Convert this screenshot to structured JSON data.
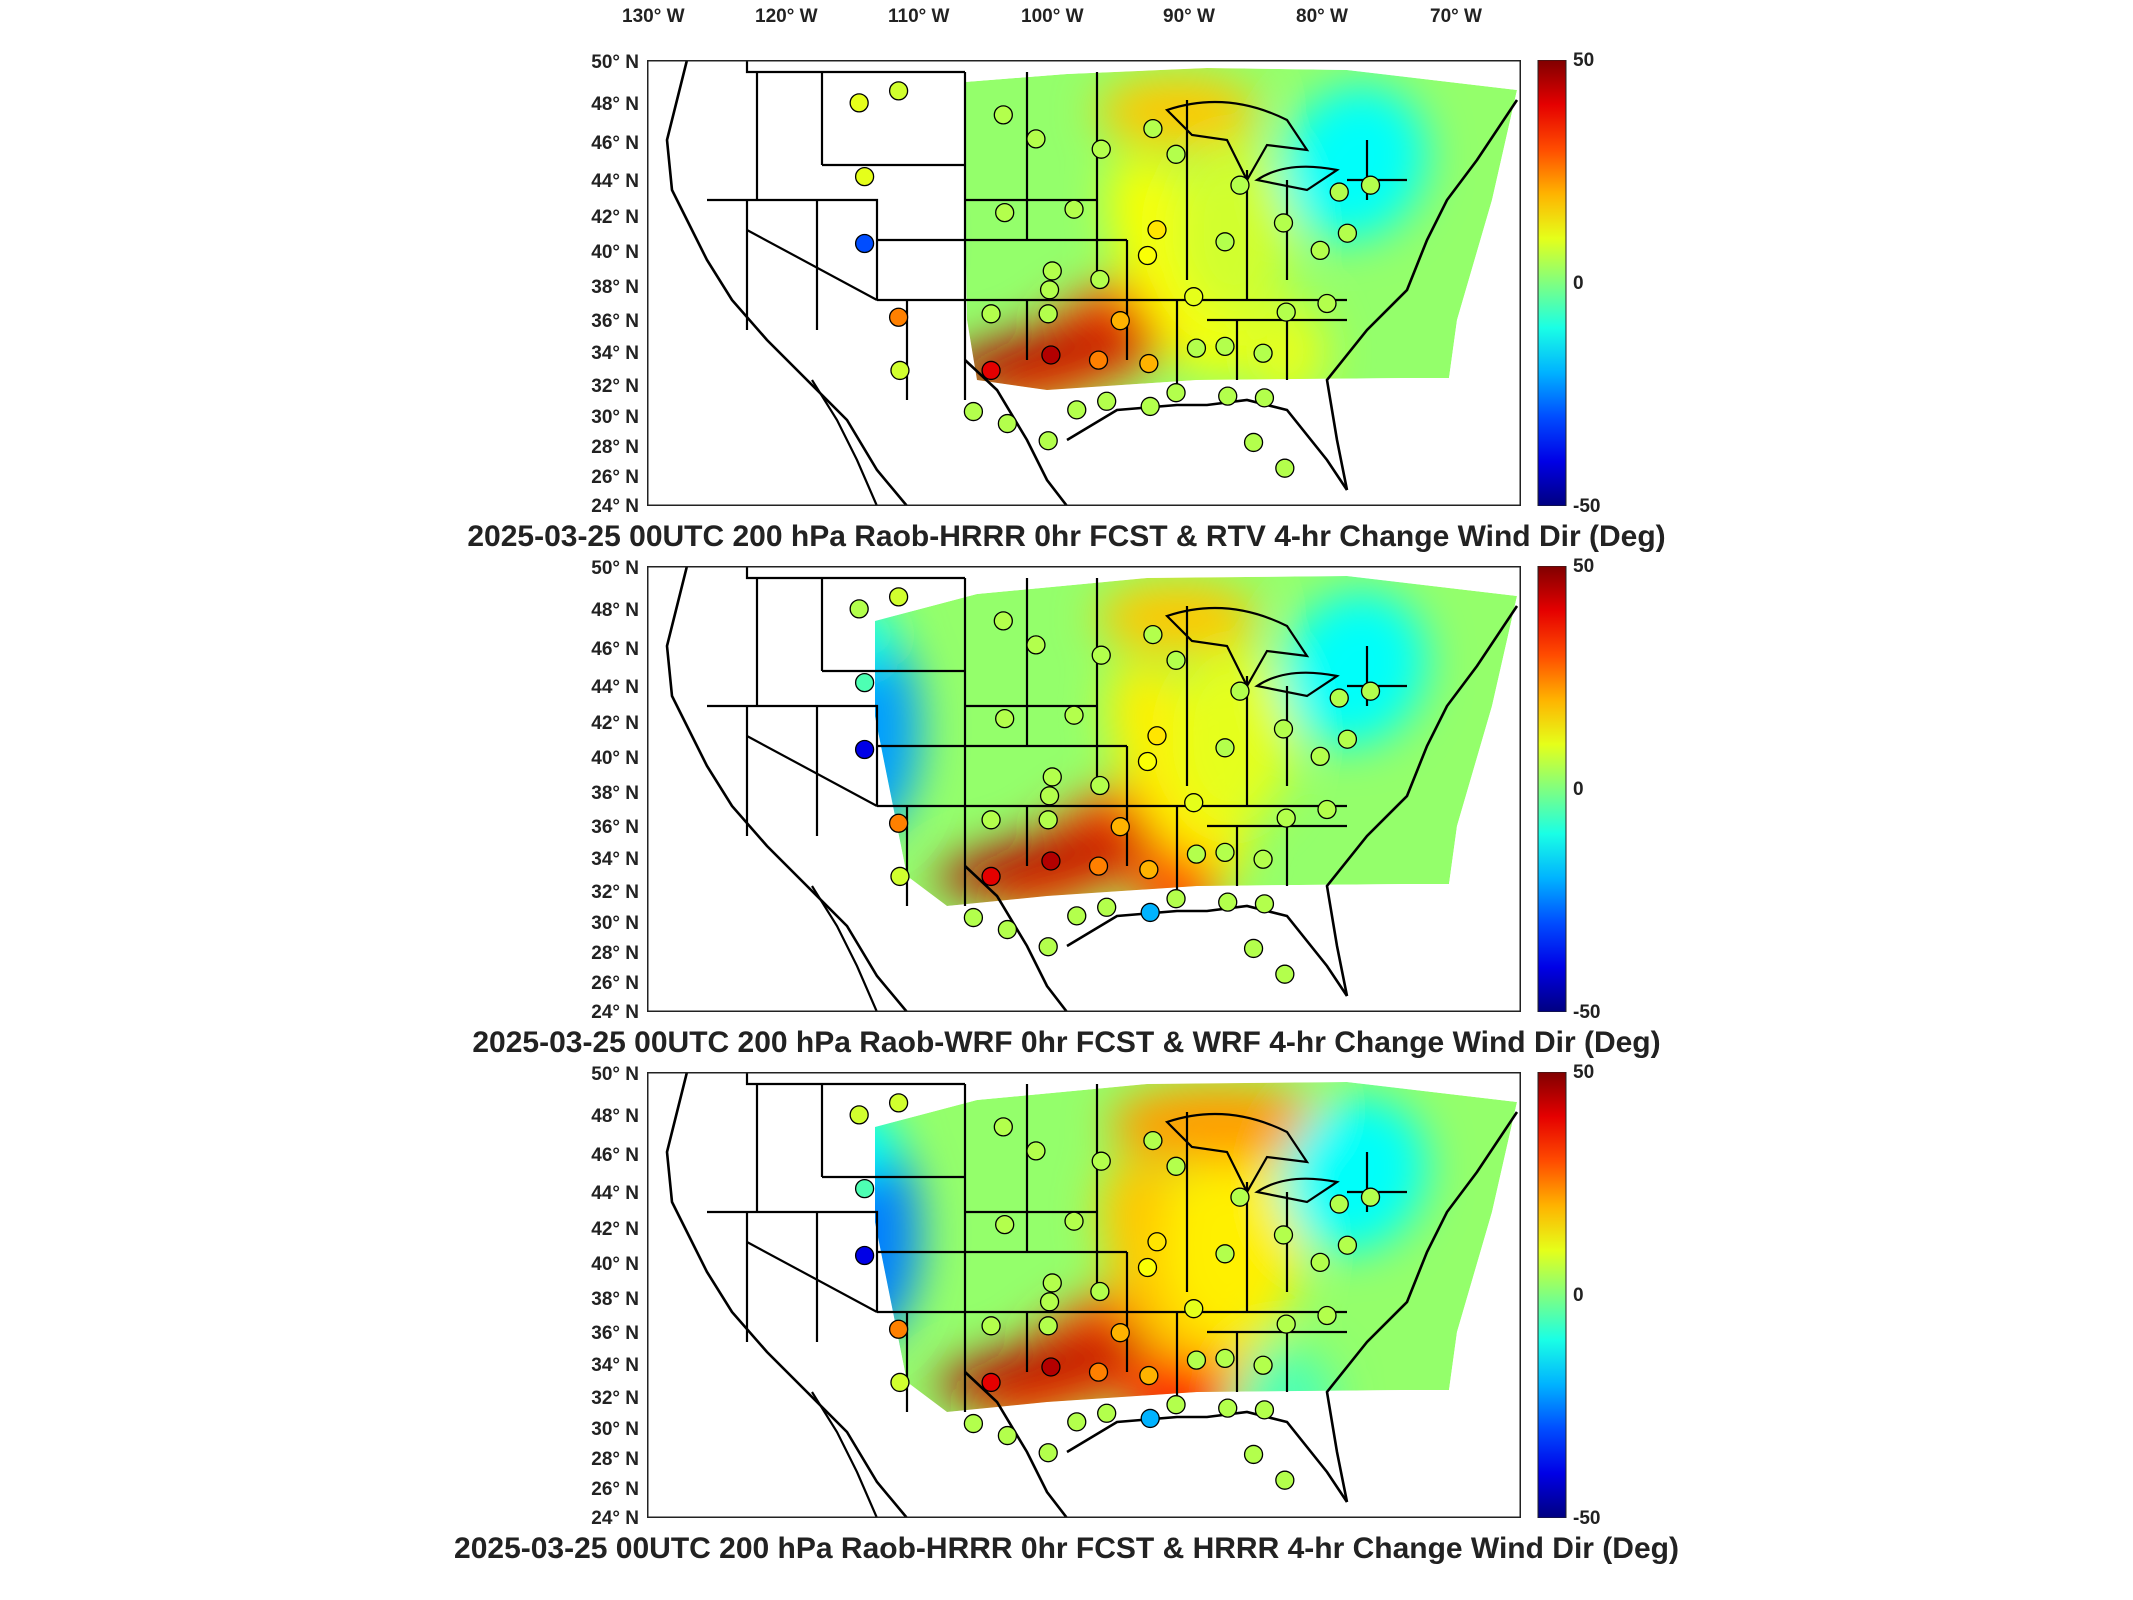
{
  "longitude_ticks": [
    "130° W",
    "120° W",
    "110° W",
    "100° W",
    "90° W",
    "80° W",
    "70° W"
  ],
  "latitude_ticks": [
    "50° N",
    "48° N",
    "46° N",
    "44° N",
    "42° N",
    "40° N",
    "38° N",
    "36° N",
    "34° N",
    "32° N",
    "30° N",
    "28° N",
    "26° N",
    "24° N"
  ],
  "colorbar": {
    "max_label": "50",
    "mid_label": "0",
    "min_label": "-50",
    "range": [
      -50,
      50
    ]
  },
  "panels": [
    {
      "title": "2025-03-25 00UTC 200 hPa Raob-HRRR 0hr FCST & RTV 4-hr Change Wind Dir (Deg)"
    },
    {
      "title": "2025-03-25 00UTC 200 hPa Raob-WRF 0hr FCST & WRF 4-hr Change Wind Dir (Deg)"
    },
    {
      "title": "2025-03-25 00UTC 200 hPa Raob-HRRR 0hr FCST & HRRR 4-hr Change Wind Dir (Deg)"
    }
  ],
  "stations": [
    {
      "lon": -111.4,
      "lat": 47.5,
      "v": [
        10,
        5,
        8
      ]
    },
    {
      "lon": -108.5,
      "lat": 48.2,
      "v": [
        8,
        8,
        8
      ]
    },
    {
      "lon": -111.0,
      "lat": 43.2,
      "v": [
        10,
        -5,
        -5
      ]
    },
    {
      "lon": -111.0,
      "lat": 39.3,
      "v": [
        -30,
        -40,
        -40
      ]
    },
    {
      "lon": -108.5,
      "lat": 35.0,
      "v": [
        25,
        25,
        25
      ]
    },
    {
      "lon": -108.4,
      "lat": 31.9,
      "v": [
        8,
        8,
        8
      ]
    },
    {
      "lon": -101.7,
      "lat": 31.9,
      "v": [
        40,
        40,
        40
      ]
    },
    {
      "lon": -97.3,
      "lat": 32.8,
      "v": [
        45,
        45,
        45
      ]
    },
    {
      "lon": -101.7,
      "lat": 35.2,
      "v": [
        5,
        5,
        5
      ]
    },
    {
      "lon": -97.5,
      "lat": 35.2,
      "v": [
        5,
        5,
        5
      ]
    },
    {
      "lon": -97.4,
      "lat": 36.6,
      "v": [
        5,
        5,
        5
      ]
    },
    {
      "lon": -95.6,
      "lat": 41.3,
      "v": [
        5,
        5,
        5
      ]
    },
    {
      "lon": -100.7,
      "lat": 41.1,
      "v": [
        5,
        5,
        5
      ]
    },
    {
      "lon": -100.8,
      "lat": 46.8,
      "v": [
        5,
        5,
        5
      ]
    },
    {
      "lon": -98.4,
      "lat": 45.4,
      "v": [
        5,
        5,
        5
      ]
    },
    {
      "lon": -97.2,
      "lat": 37.7,
      "v": [
        5,
        5,
        5
      ]
    },
    {
      "lon": -93.6,
      "lat": 44.8,
      "v": [
        5,
        5,
        5
      ]
    },
    {
      "lon": -89.8,
      "lat": 46.0,
      "v": [
        5,
        5,
        5
      ]
    },
    {
      "lon": -88.1,
      "lat": 44.5,
      "v": [
        5,
        5,
        5
      ]
    },
    {
      "lon": -89.5,
      "lat": 40.1,
      "v": [
        15,
        15,
        15
      ]
    },
    {
      "lon": -93.7,
      "lat": 37.2,
      "v": [
        5,
        5,
        5
      ]
    },
    {
      "lon": -90.2,
      "lat": 38.6,
      "v": [
        12,
        12,
        12
      ]
    },
    {
      "lon": -92.2,
      "lat": 34.8,
      "v": [
        20,
        20,
        20
      ]
    },
    {
      "lon": -93.8,
      "lat": 32.5,
      "v": [
        25,
        25,
        25
      ]
    },
    {
      "lon": -90.1,
      "lat": 32.3,
      "v": [
        20,
        20,
        20
      ]
    },
    {
      "lon": -86.8,
      "lat": 36.2,
      "v": [
        10,
        10,
        10
      ]
    },
    {
      "lon": -86.6,
      "lat": 33.2,
      "v": [
        5,
        5,
        5
      ]
    },
    {
      "lon": -84.5,
      "lat": 33.3,
      "v": [
        5,
        5,
        5
      ]
    },
    {
      "lon": -81.7,
      "lat": 32.9,
      "v": [
        5,
        5,
        5
      ]
    },
    {
      "lon": -80.0,
      "lat": 35.3,
      "v": [
        5,
        5,
        5
      ]
    },
    {
      "lon": -84.5,
      "lat": 39.4,
      "v": [
        5,
        5,
        5
      ]
    },
    {
      "lon": -83.4,
      "lat": 42.7,
      "v": [
        5,
        5,
        5
      ]
    },
    {
      "lon": -80.2,
      "lat": 40.5,
      "v": [
        5,
        5,
        5
      ]
    },
    {
      "lon": -77.5,
      "lat": 38.9,
      "v": [
        5,
        5,
        5
      ]
    },
    {
      "lon": -76.1,
      "lat": 42.3,
      "v": [
        5,
        5,
        5
      ]
    },
    {
      "lon": -73.8,
      "lat": 42.7,
      "v": [
        5,
        5,
        5
      ]
    },
    {
      "lon": -75.5,
      "lat": 39.9,
      "v": [
        5,
        5,
        5
      ]
    },
    {
      "lon": -77.0,
      "lat": 35.8,
      "v": [
        5,
        5,
        5
      ]
    },
    {
      "lon": -84.3,
      "lat": 30.4,
      "v": [
        5,
        5,
        5
      ]
    },
    {
      "lon": -88.1,
      "lat": 30.6,
      "v": [
        5,
        5,
        5
      ]
    },
    {
      "lon": -90.0,
      "lat": 29.8,
      "v": [
        5,
        -20,
        -20
      ]
    },
    {
      "lon": -93.2,
      "lat": 30.1,
      "v": [
        5,
        5,
        5
      ]
    },
    {
      "lon": -95.4,
      "lat": 29.6,
      "v": [
        5,
        5,
        5
      ]
    },
    {
      "lon": -97.5,
      "lat": 27.8,
      "v": [
        5,
        5,
        5
      ]
    },
    {
      "lon": -100.5,
      "lat": 28.8,
      "v": [
        5,
        5,
        5
      ]
    },
    {
      "lon": -103.0,
      "lat": 29.5,
      "v": [
        5,
        5,
        5
      ]
    },
    {
      "lon": -82.4,
      "lat": 27.7,
      "v": [
        5,
        5,
        5
      ]
    },
    {
      "lon": -80.1,
      "lat": 26.2,
      "v": [
        5,
        5,
        5
      ]
    },
    {
      "lon": -81.6,
      "lat": 30.3,
      "v": [
        5,
        5,
        5
      ]
    }
  ]
}
